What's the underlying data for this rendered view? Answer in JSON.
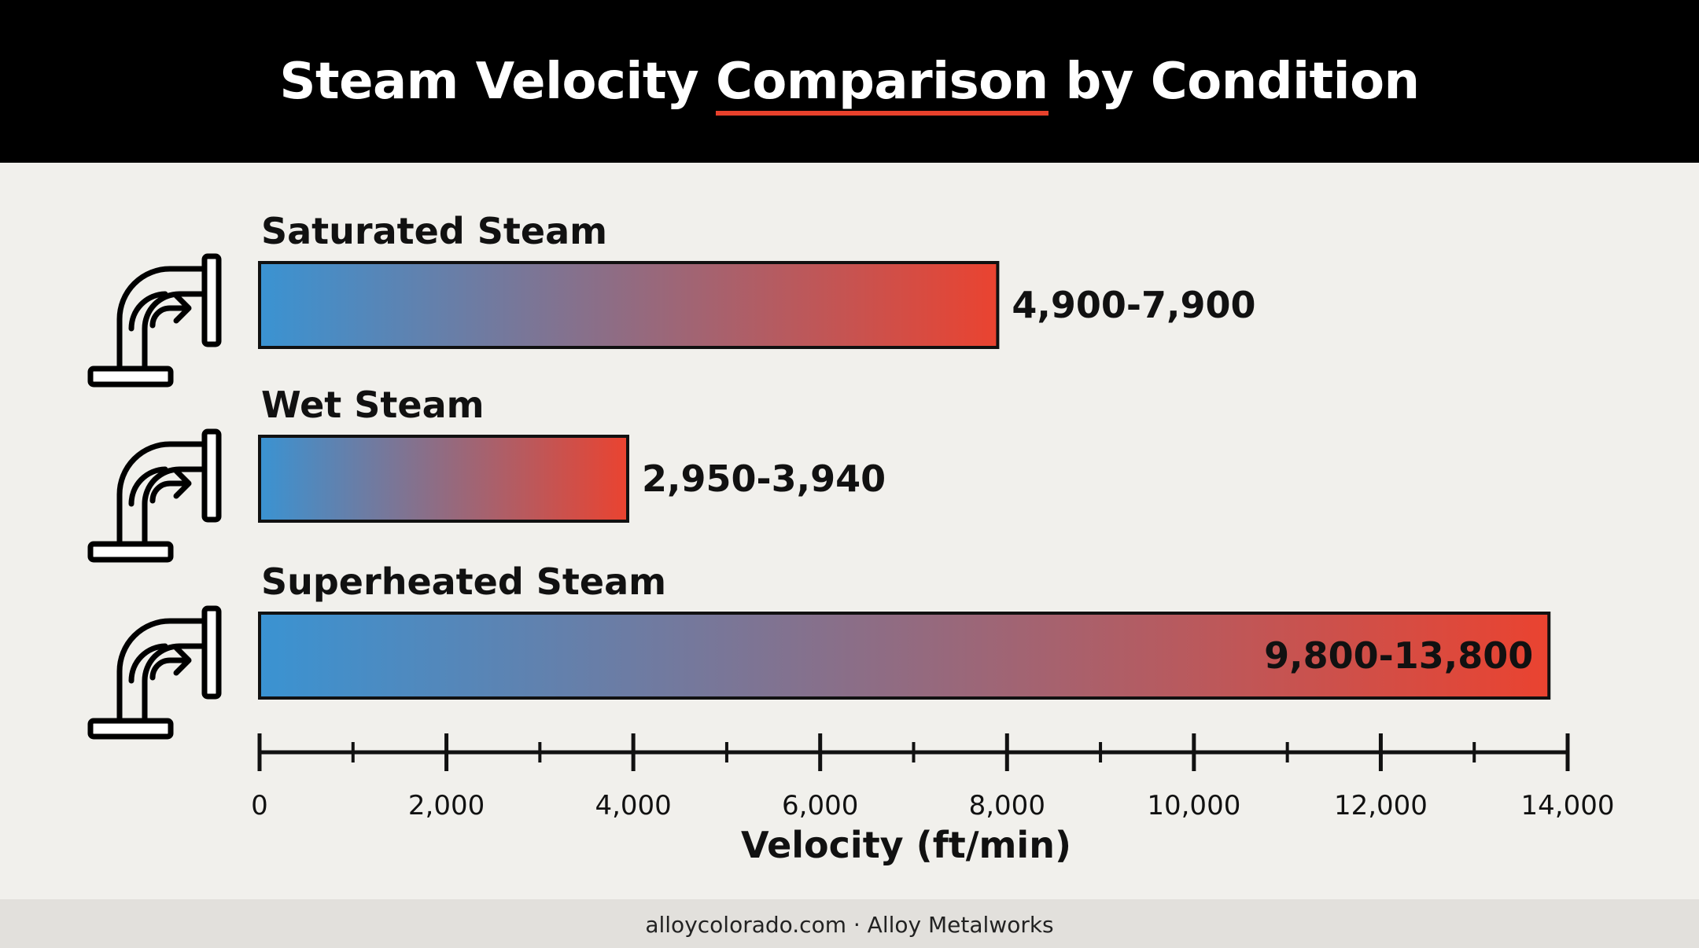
{
  "title": {
    "before": "Steam Velocity ",
    "highlight": "Comparison",
    "after": " by Condition"
  },
  "colors": {
    "gradient_start": "#3a93d2",
    "gradient_end": "#ea4330",
    "accent_underline": "#e8412c",
    "header_bg": "#000000",
    "page_bg": "#f1f0ec"
  },
  "chart_data": {
    "type": "bar",
    "orientation": "horizontal",
    "categories": [
      "Saturated Steam",
      "Wet Steam",
      "Superheated Steam"
    ],
    "ranges": [
      [
        4900,
        7900
      ],
      [
        2950,
        3940
      ],
      [
        9800,
        13800
      ]
    ],
    "values": [
      7900,
      3940,
      13800
    ],
    "data_labels": [
      "4,900-7,900",
      "2,950-3,940",
      "9,800-13,800"
    ],
    "xlabel": "Velocity (ft/min)",
    "xlim": [
      0,
      14000
    ],
    "major_ticks": [
      0,
      2000,
      4000,
      6000,
      8000,
      10000,
      12000,
      14000
    ],
    "tick_labels": [
      "0",
      "2,000",
      "4,000",
      "6,000",
      "8,000",
      "10,000",
      "12,000",
      "14,000"
    ],
    "minor_ticks": [
      1000,
      3000,
      5000,
      7000,
      9000,
      11000,
      13000
    ],
    "category_icon": "pipe-elbow-icon",
    "grid": false
  },
  "footer": "alloycolorado.com · Alloy Metalworks"
}
